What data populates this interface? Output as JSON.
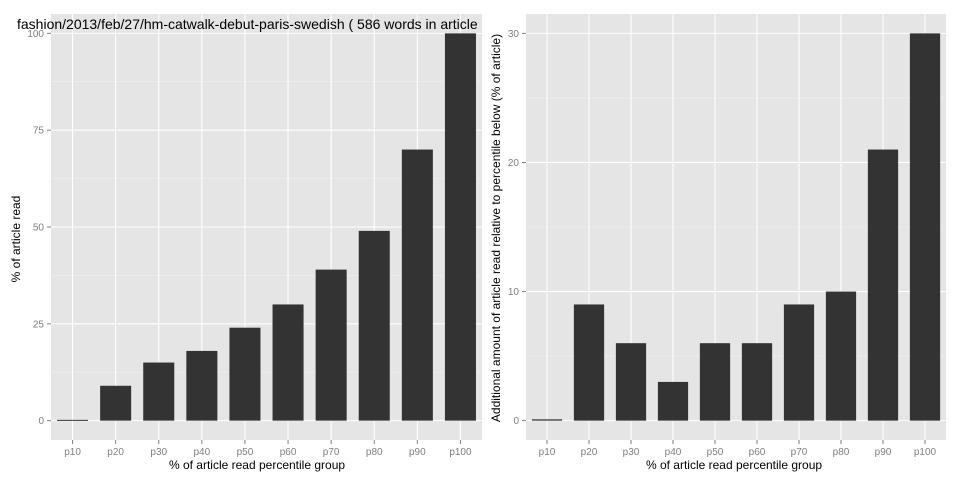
{
  "chart_data": [
    {
      "type": "bar",
      "title": "fashion/2013/feb/27/hm-catwalk-debut-paris-swedish ( 586 words in article )",
      "xlabel": "% of article read percentile group",
      "ylabel": "% of article read",
      "categories": [
        "p10",
        "p20",
        "p30",
        "p40",
        "p50",
        "p60",
        "p70",
        "p80",
        "p90",
        "p100"
      ],
      "values": [
        0.2,
        9,
        15,
        18,
        24,
        30,
        39,
        49,
        70,
        100
      ],
      "ylim": [
        -5,
        105
      ],
      "yticks": [
        0,
        25,
        50,
        75,
        100
      ],
      "grid": true,
      "bar_color": "#333333",
      "panel_color": "#e5e5e5"
    },
    {
      "type": "bar",
      "title": "",
      "xlabel": "% of article read percentile group",
      "ylabel": "Additional amount of article read relative to percentile below (% of article)",
      "categories": [
        "p10",
        "p20",
        "p30",
        "p40",
        "p50",
        "p60",
        "p70",
        "p80",
        "p90",
        "p100"
      ],
      "values": [
        0.1,
        9,
        6,
        3,
        6,
        6,
        9,
        10,
        21,
        30
      ],
      "ylim": [
        -1.5,
        31.5
      ],
      "yticks": [
        0,
        10,
        20,
        30
      ],
      "grid": true,
      "bar_color": "#333333",
      "panel_color": "#e5e5e5"
    }
  ]
}
